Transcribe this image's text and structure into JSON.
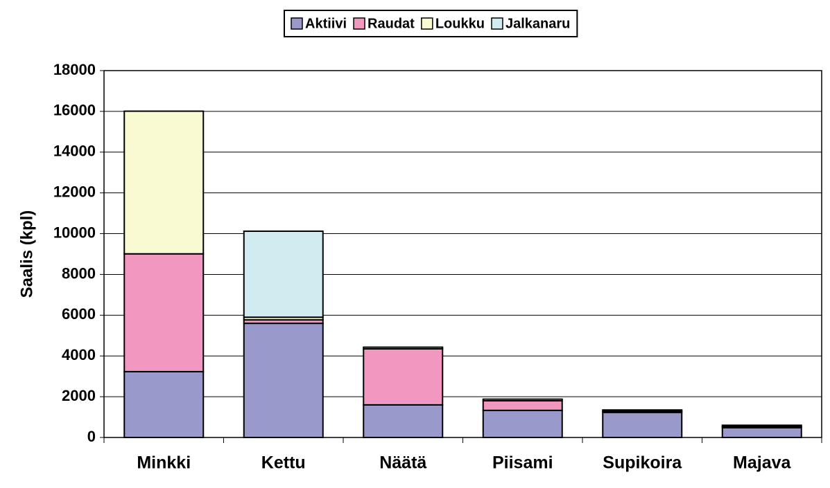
{
  "chart_data": {
    "type": "stacked_bar",
    "y_label": "Saalis (kpl)",
    "categories": [
      "Minkki",
      "Kettu",
      "Näätä",
      "Piisami",
      "Supikoira",
      "Majava"
    ],
    "series": [
      {
        "name": "Aktiivi",
        "color": "#9999cc",
        "values": [
          3230,
          5600,
          1600,
          1330,
          1230,
          480
        ]
      },
      {
        "name": "Raudat",
        "color": "#f197c0",
        "values": [
          5780,
          170,
          2750,
          470,
          60,
          60
        ]
      },
      {
        "name": "Loukku",
        "color": "#fafad2",
        "values": [
          7000,
          130,
          80,
          80,
          60,
          60
        ]
      },
      {
        "name": "Jalkanaru",
        "color": "#d0ecf0",
        "values": [
          0,
          4220,
          0,
          0,
          0,
          0
        ]
      }
    ],
    "ylim": [
      0,
      18000
    ],
    "yticks": [
      0,
      2000,
      4000,
      6000,
      8000,
      10000,
      12000,
      14000,
      16000,
      18000
    ],
    "grid": true,
    "legend": "top"
  }
}
